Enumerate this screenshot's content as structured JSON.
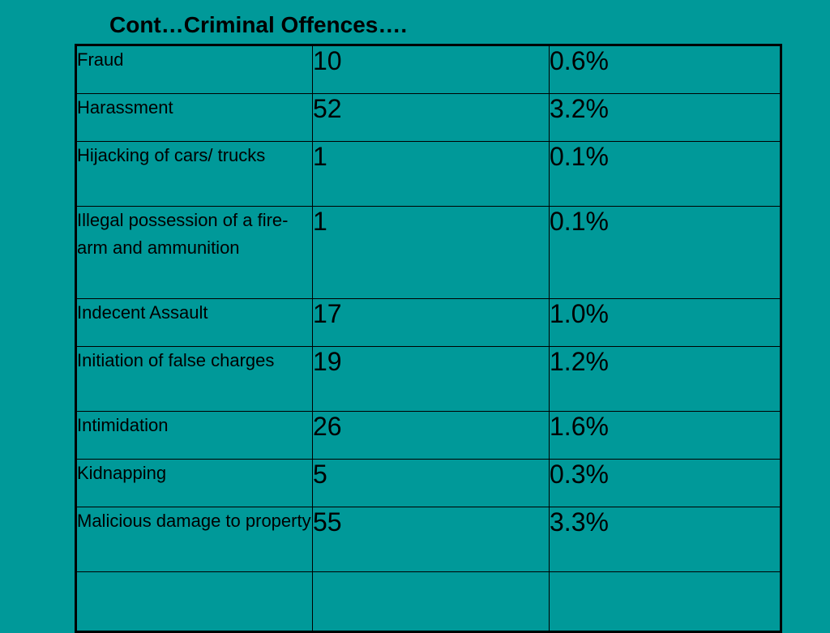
{
  "slide": {
    "title": "Cont…Criminal Offences…."
  },
  "table": {
    "rows": [
      {
        "offence": "Fraud",
        "count": "10",
        "percent": "0.6%"
      },
      {
        "offence": "Harassment",
        "count": "52",
        "percent": "3.2%"
      },
      {
        "offence": "Hijacking of cars/ trucks",
        "count": "1",
        "percent": "0.1%"
      },
      {
        "offence": "Illegal possession of a fire-arm and ammunition",
        "count": "1",
        "percent": "0.1%"
      },
      {
        "offence": "Indecent Assault",
        "count": "17",
        "percent": "1.0%"
      },
      {
        "offence": "Initiation of false charges",
        "count": "19",
        "percent": "1.2%"
      },
      {
        "offence": "Intimidation",
        "count": "26",
        "percent": "1.6%"
      },
      {
        "offence": "Kidnapping",
        "count": "5",
        "percent": "0.3%"
      },
      {
        "offence": "Malicious damage to property",
        "count": "55",
        "percent": "3.3%"
      },
      {
        "offence": "",
        "count": "",
        "percent": ""
      }
    ]
  },
  "colors": {
    "background": "#009999",
    "text": "#000000",
    "border": "#000000"
  }
}
